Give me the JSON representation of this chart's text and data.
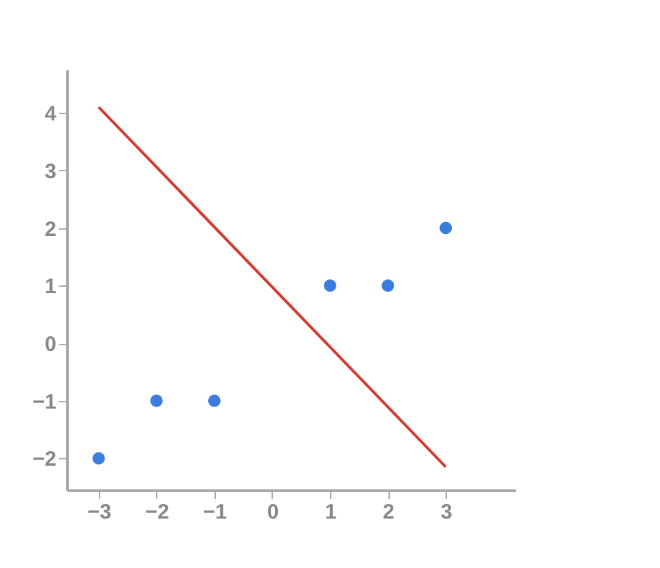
{
  "chart_data": {
    "type": "scatter",
    "xlim": [
      -3.55,
      4.2
    ],
    "ylim": [
      -2.55,
      4.75
    ],
    "xticks": [
      -3,
      -2,
      -1,
      0,
      1,
      2,
      3
    ],
    "yticks": [
      -2,
      -1,
      0,
      1,
      2,
      3,
      4
    ],
    "grid": false,
    "series": [
      {
        "marker": "circle",
        "color": "#3b7ddd",
        "x": [
          -3,
          -2,
          -1,
          1,
          2,
          3
        ],
        "values": [
          -2,
          -1,
          -1,
          1,
          1,
          2
        ]
      },
      {
        "type": "line",
        "color": "#d23c2e",
        "x": [
          -3,
          3
        ],
        "values": [
          4.1,
          -2.15
        ]
      }
    ]
  }
}
